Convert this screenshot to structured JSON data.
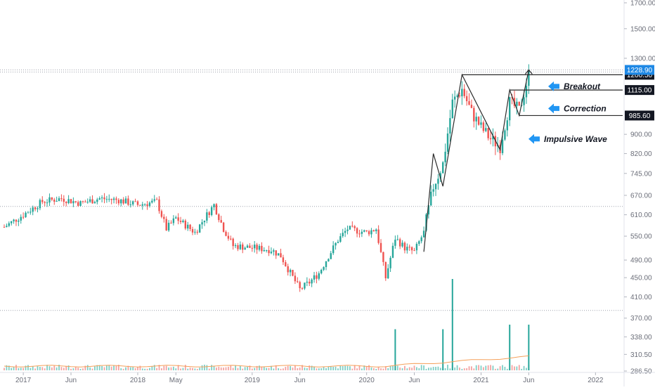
{
  "colors": {
    "up": "#26a69a",
    "down": "#ef5350",
    "line": "#2b2b2b",
    "arrow": "#2196f3",
    "tag_bg": "#131722",
    "tag_text": "#ffffff",
    "price_tag_bg": "#1e88e5",
    "axis_text": "#6a6d78",
    "grid": "#9fa3ad",
    "ma_line": "#f5a05a"
  },
  "chart_data": {
    "type": "candlestick",
    "y_axis": {
      "scale": "log",
      "ylim": [
        281,
        1800
      ],
      "ticks": [
        286.5,
        310.5,
        338.0,
        370.0,
        410.0,
        450.0,
        490.0,
        550.0,
        610.0,
        670.0,
        745.0,
        820.0,
        900.0,
        1300.0,
        1500.0,
        1700.0
      ],
      "tick_labels": [
        "286.50",
        "310.50",
        "338.00",
        "370.00",
        "410.00",
        "450.00",
        "490.00",
        "550.00",
        "610.00",
        "670.00",
        "745.00",
        "820.00",
        "900.00",
        "1300.00",
        "1500.00",
        "1700.00"
      ]
    },
    "x_axis": {
      "range": [
        "2016-11",
        "2022-04"
      ],
      "ticks": [
        {
          "label": "2017",
          "date": "2017-01"
        },
        {
          "label": "Jun",
          "date": "2017-06"
        },
        {
          "label": "2018",
          "date": "2018-01"
        },
        {
          "label": "May",
          "date": "2018-05"
        },
        {
          "label": "2019",
          "date": "2019-01"
        },
        {
          "label": "Jun",
          "date": "2019-06"
        },
        {
          "label": "2020",
          "date": "2020-01"
        },
        {
          "label": "Jun",
          "date": "2020-06"
        },
        {
          "label": "2021",
          "date": "2021-01"
        },
        {
          "label": "Jun",
          "date": "2021-06"
        },
        {
          "label": "2022",
          "date": "2022-01"
        }
      ]
    },
    "price_path": [
      [
        "2016-11",
        575
      ],
      [
        "2017-01",
        610
      ],
      [
        "2017-03",
        650
      ],
      [
        "2017-05",
        660
      ],
      [
        "2017-07",
        645
      ],
      [
        "2017-09",
        660
      ],
      [
        "2017-11",
        655
      ],
      [
        "2018-01",
        640
      ],
      [
        "2018-03",
        650
      ],
      [
        "2018-04",
        570
      ],
      [
        "2018-05",
        600
      ],
      [
        "2018-06",
        580
      ],
      [
        "2018-07",
        560
      ],
      [
        "2018-08",
        600
      ],
      [
        "2018-09",
        640
      ],
      [
        "2018-10",
        570
      ],
      [
        "2018-11",
        525
      ],
      [
        "2019-01",
        520
      ],
      [
        "2019-03",
        515
      ],
      [
        "2019-04",
        500
      ],
      [
        "2019-05",
        460
      ],
      [
        "2019-06",
        425
      ],
      [
        "2019-07",
        440
      ],
      [
        "2019-08",
        460
      ],
      [
        "2019-09",
        500
      ],
      [
        "2019-10",
        540
      ],
      [
        "2019-11",
        570
      ],
      [
        "2020-01",
        560
      ],
      [
        "2020-02",
        570
      ],
      [
        "2020-03",
        450
      ],
      [
        "2020-04",
        545
      ],
      [
        "2020-05",
        520
      ],
      [
        "2020-06",
        510
      ],
      [
        "2020-07",
        560
      ],
      [
        "2020-08",
        700
      ],
      [
        "2020-09",
        780
      ],
      [
        "2020-10",
        1050
      ],
      [
        "2020-11",
        1120
      ],
      [
        "2020-12",
        1000
      ],
      [
        "2021-01",
        930
      ],
      [
        "2021-02",
        880
      ],
      [
        "2021-03",
        850
      ],
      [
        "2021-04",
        1050
      ],
      [
        "2021-05",
        1010
      ],
      [
        "2021-06",
        1200
      ]
    ],
    "volume_spikes": [
      {
        "date": "2020-04",
        "relative": 0.45
      },
      {
        "date": "2020-09",
        "relative": 0.45
      },
      {
        "date": "2020-10",
        "relative": 1.0
      },
      {
        "date": "2021-04",
        "relative": 0.5
      },
      {
        "date": "2021-06",
        "relative": 0.5
      }
    ],
    "horizontal_levels": [
      {
        "value": 1200.5,
        "label": "1200.50",
        "style": "solid"
      },
      {
        "value": 1115.0,
        "label": "1115.00",
        "style": "solid"
      },
      {
        "value": 985.6,
        "label": "985.60",
        "style": "solid"
      }
    ],
    "current_price": {
      "value": 1228.9,
      "label": "1228.90"
    },
    "dotted_levels": [
      1228.9,
      635,
      384
    ],
    "annotations": [
      {
        "text": "Breakout",
        "near_value": 1135
      },
      {
        "text": "Correction",
        "near_value": 1020
      },
      {
        "text": "Impulsive Wave",
        "near_value": 880
      }
    ],
    "trend_lines": [
      [
        [
          "2020-07",
          510
        ],
        [
          "2020-08",
          820
        ],
        [
          "2020-09",
          700
        ],
        [
          "2020-11",
          1200.5
        ],
        [
          "2021-03",
          835
        ],
        [
          "2021-04",
          1115
        ],
        [
          "2021-05",
          985.6
        ],
        [
          "2021-06",
          1228.9
        ]
      ]
    ]
  }
}
